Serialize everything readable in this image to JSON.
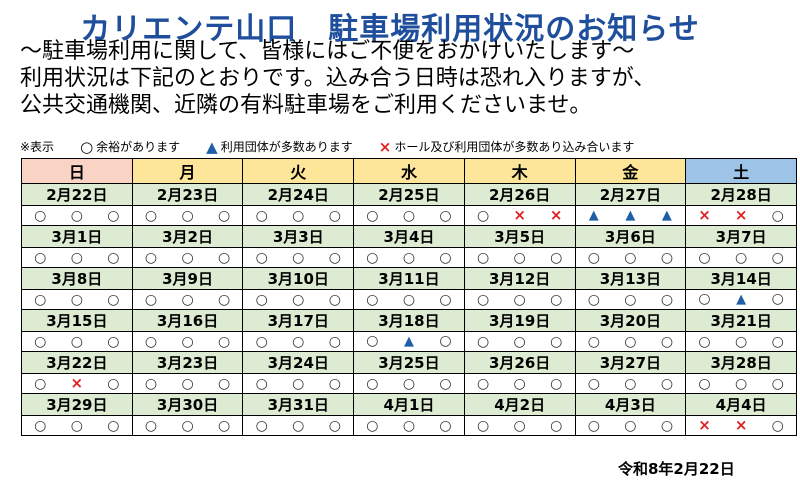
{
  "title": "カリエンテ山口　駐車場利用状況のお知らせ",
  "intro": [
    "～駐車場利用に関して、皆様にはご不便をおかけいたします～",
    "利用状況は下記のとおりです。込み合う日時は恐れ入りますが、",
    "公共交通機関、近隣の有料駐車場をご利用くださいませ。"
  ],
  "legend": {
    "label": "※表示",
    "items": [
      {
        "icon": "circle-icon",
        "symbol": "○",
        "text": "余裕があります"
      },
      {
        "icon": "triangle-icon",
        "symbol": "▲",
        "text": "利用団体が多数あります"
      },
      {
        "icon": "cross-icon",
        "symbol": "×",
        "text": "ホール及び利用団体が多数あり込み合います"
      }
    ]
  },
  "symbols": {
    "o": "○",
    "t": "▲",
    "x": "×"
  },
  "colors": {
    "title": "#1f4e9c",
    "sunday_header": "#f9d3c3",
    "weekday_header": "#fde59a",
    "saturday_header": "#9dc3e6",
    "date_row": "#dcebd2",
    "triangle": "#1f5fa8",
    "cross": "#e02020"
  },
  "weekdays": [
    "日",
    "月",
    "火",
    "水",
    "木",
    "金",
    "土"
  ],
  "weeks": [
    {
      "dates": [
        "2月22日",
        "2月23日",
        "2月24日",
        "2月25日",
        "2月26日",
        "2月27日",
        "2月28日"
      ],
      "status": [
        [
          "o",
          "o",
          "o"
        ],
        [
          "o",
          "o",
          "o"
        ],
        [
          "o",
          "o",
          "o"
        ],
        [
          "o",
          "o",
          "o"
        ],
        [
          "o",
          "x",
          "x"
        ],
        [
          "t",
          "t",
          "t"
        ],
        [
          "x",
          "x",
          "o"
        ]
      ]
    },
    {
      "dates": [
        "3月1日",
        "3月2日",
        "3月3日",
        "3月4日",
        "3月5日",
        "3月6日",
        "3月7日"
      ],
      "status": [
        [
          "o",
          "o",
          "o"
        ],
        [
          "o",
          "o",
          "o"
        ],
        [
          "o",
          "o",
          "o"
        ],
        [
          "o",
          "o",
          "o"
        ],
        [
          "o",
          "o",
          "o"
        ],
        [
          "o",
          "o",
          "o"
        ],
        [
          "o",
          "o",
          "o"
        ]
      ]
    },
    {
      "dates": [
        "3月8日",
        "3月9日",
        "3月10日",
        "3月11日",
        "3月12日",
        "3月13日",
        "3月14日"
      ],
      "status": [
        [
          "o",
          "o",
          "o"
        ],
        [
          "o",
          "o",
          "o"
        ],
        [
          "o",
          "o",
          "o"
        ],
        [
          "o",
          "o",
          "o"
        ],
        [
          "o",
          "o",
          "o"
        ],
        [
          "o",
          "o",
          "o"
        ],
        [
          "o",
          "t",
          "o"
        ]
      ]
    },
    {
      "dates": [
        "3月15日",
        "3月16日",
        "3月17日",
        "3月18日",
        "3月19日",
        "3月20日",
        "3月21日"
      ],
      "status": [
        [
          "o",
          "o",
          "o"
        ],
        [
          "o",
          "o",
          "o"
        ],
        [
          "o",
          "o",
          "o"
        ],
        [
          "o",
          "t",
          "o"
        ],
        [
          "o",
          "o",
          "o"
        ],
        [
          "o",
          "o",
          "o"
        ],
        [
          "o",
          "o",
          "o"
        ]
      ]
    },
    {
      "dates": [
        "3月22日",
        "3月23日",
        "3月24日",
        "3月25日",
        "3月26日",
        "3月27日",
        "3月28日"
      ],
      "status": [
        [
          "o",
          "x",
          "o"
        ],
        [
          "o",
          "o",
          "o"
        ],
        [
          "o",
          "o",
          "o"
        ],
        [
          "o",
          "o",
          "o"
        ],
        [
          "o",
          "o",
          "o"
        ],
        [
          "o",
          "o",
          "o"
        ],
        [
          "o",
          "o",
          "o"
        ]
      ]
    },
    {
      "dates": [
        "3月29日",
        "3月30日",
        "3月31日",
        "4月1日",
        "4月2日",
        "4月3日",
        "4月4日"
      ],
      "status": [
        [
          "o",
          "o",
          "o"
        ],
        [
          "o",
          "o",
          "o"
        ],
        [
          "o",
          "o",
          "o"
        ],
        [
          "o",
          "o",
          "o"
        ],
        [
          "o",
          "o",
          "o"
        ],
        [
          "o",
          "o",
          "o"
        ],
        [
          "x",
          "x",
          "o"
        ]
      ]
    }
  ],
  "footer_date": "令和8年2月22日"
}
